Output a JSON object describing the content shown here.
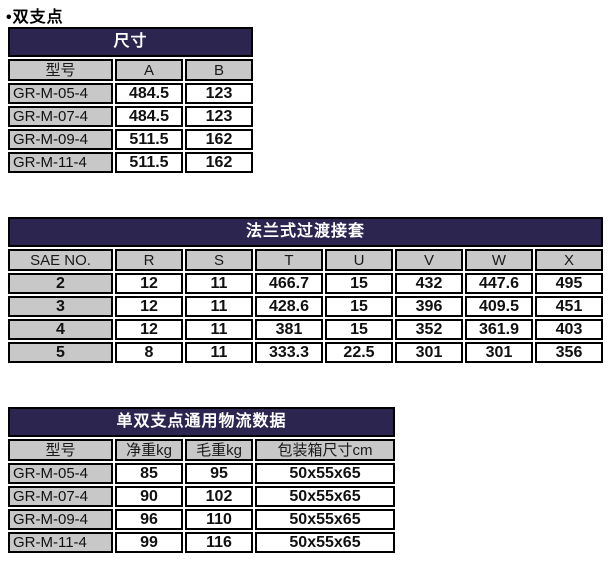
{
  "page_title": "•双支点",
  "colors": {
    "table_header_bg": "#2b2550",
    "column_header_bg": "#c8c8c8",
    "border": "#000000",
    "cell_bg": "#ffffff"
  },
  "table_dimensions": {
    "title": "尺寸",
    "columns": [
      "型号",
      "A",
      "B"
    ],
    "rows": [
      [
        "GR-M-05-4",
        "484.5",
        "123"
      ],
      [
        "GR-M-07-4",
        "484.5",
        "123"
      ],
      [
        "GR-M-09-4",
        "511.5",
        "162"
      ],
      [
        "GR-M-11-4",
        "511.5",
        "162"
      ]
    ]
  },
  "table_flange": {
    "title": "法兰式过渡接套",
    "columns": [
      "SAE NO.",
      "R",
      "S",
      "T",
      "U",
      "V",
      "W",
      "X"
    ],
    "rows": [
      [
        "2",
        "12",
        "11",
        "466.7",
        "15",
        "432",
        "447.6",
        "495"
      ],
      [
        "3",
        "12",
        "11",
        "428.6",
        "15",
        "396",
        "409.5",
        "451"
      ],
      [
        "4",
        "12",
        "11",
        "381",
        "15",
        "352",
        "361.9",
        "403"
      ],
      [
        "5",
        "8",
        "11",
        "333.3",
        "22.5",
        "301",
        "301",
        "356"
      ]
    ]
  },
  "table_logistics": {
    "title": "单双支点通用物流数据",
    "columns": [
      "型号",
      "净重kg",
      "毛重kg",
      "包装箱尺寸cm"
    ],
    "rows": [
      [
        "GR-M-05-4",
        "85",
        "95",
        "50x55x65"
      ],
      [
        "GR-M-07-4",
        "90",
        "102",
        "50x55x65"
      ],
      [
        "GR-M-09-4",
        "96",
        "110",
        "50x55x65"
      ],
      [
        "GR-M-11-4",
        "99",
        "116",
        "50x55x65"
      ]
    ]
  }
}
